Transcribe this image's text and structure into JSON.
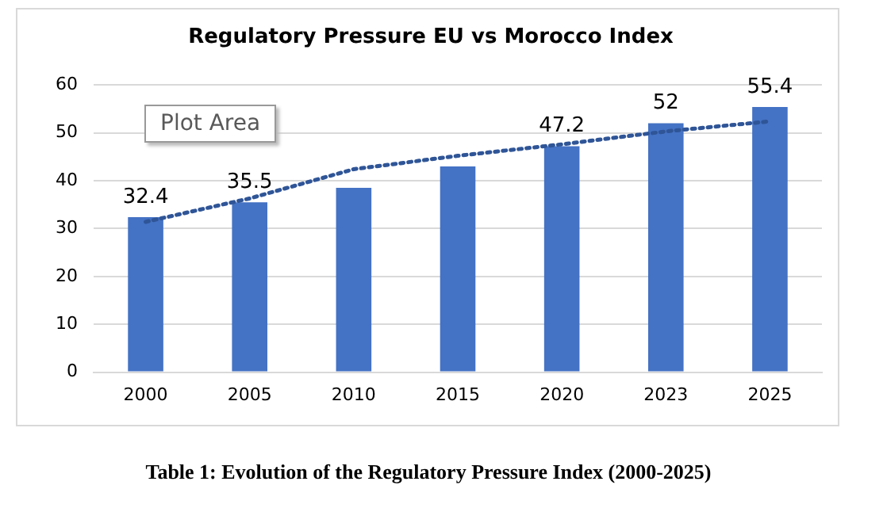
{
  "chart_data": {
    "type": "bar",
    "title": "Regulatory Pressure EU vs Morocco Index",
    "categories": [
      "2000",
      "2005",
      "2010",
      "2015",
      "2020",
      "2023",
      "2025"
    ],
    "series": [
      {
        "color": "#4472c4",
        "values": [
          32.4,
          35.5,
          38.5,
          43,
          47.2,
          52,
          55.4
        ],
        "value_labels": [
          "32.4",
          "35.5",
          null,
          null,
          "47.2",
          "52",
          "55.4"
        ]
      },
      {
        "type": "line",
        "color": "#2f5597",
        "line_style": "dotted",
        "marker": "none",
        "values": [
          31.4,
          36.3,
          42.4,
          45.2,
          47.6,
          50.3,
          52.4
        ]
      }
    ],
    "ylim": [
      0,
      60
    ],
    "yticks": [
      0,
      10,
      20,
      30,
      40,
      50,
      60
    ],
    "grid": "y",
    "legend": false,
    "annotations": [
      "Table 1: Evolution of the Regulatory Pressure Index (2000-2025)",
      "Plot Area"
    ]
  }
}
